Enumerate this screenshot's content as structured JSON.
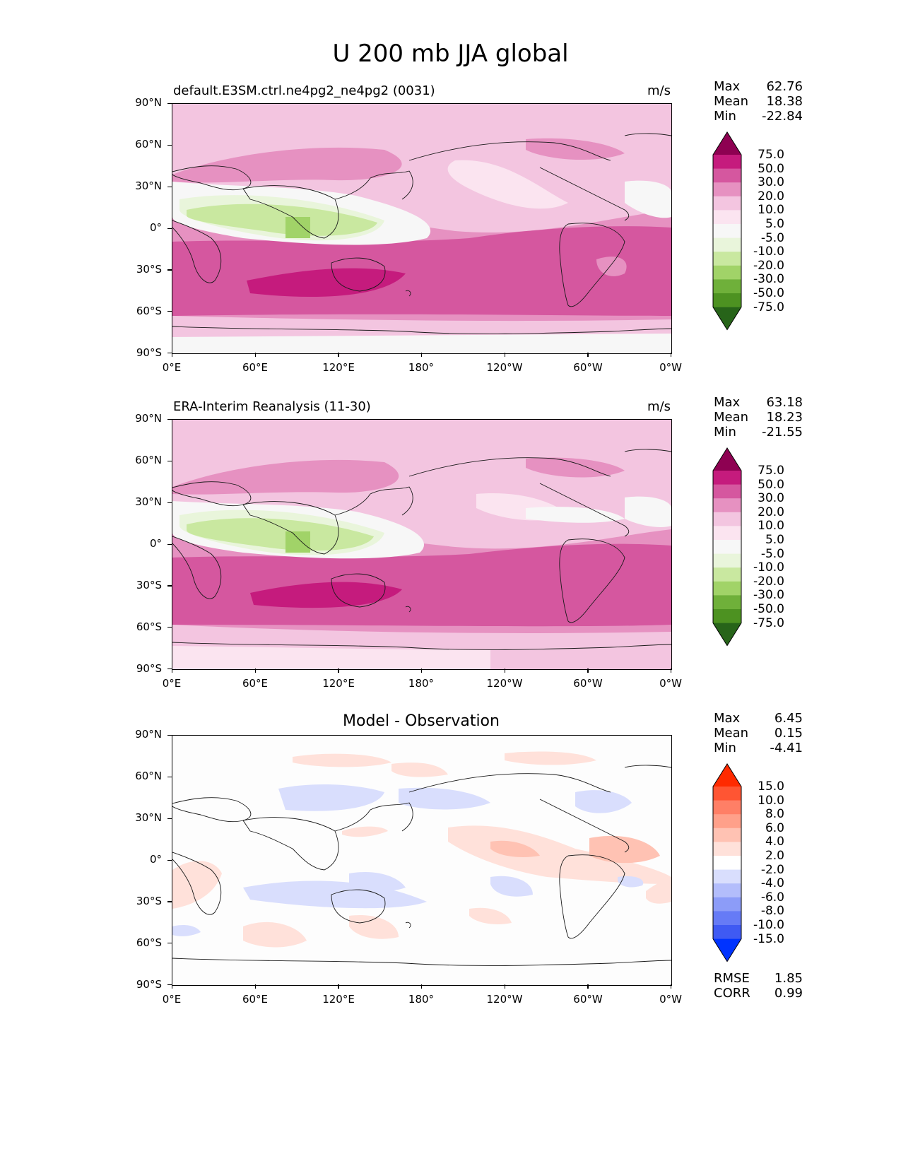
{
  "suptitle": "U 200 mb JJA global",
  "x_ticks": [
    "0°E",
    "60°E",
    "120°E",
    "180°",
    "120°W",
    "60°W",
    "0°W"
  ],
  "y_ticks": [
    "90°N",
    "60°N",
    "30°N",
    "0°",
    "30°S",
    "60°S",
    "90°S"
  ],
  "panels": [
    {
      "title": "default.E3SM.ctrl.ne4pg2_ne4pg2 (0031)",
      "units": "m/s",
      "stats": {
        "max_label": "Max",
        "max": "62.76",
        "mean_label": "Mean",
        "mean": "18.38",
        "min_label": "Min",
        "min": "-22.84"
      },
      "colorbar": {
        "labels": [
          "75.0",
          "50.0",
          "30.0",
          "20.0",
          "10.0",
          "5.0",
          "-5.0",
          "-10.0",
          "-20.0",
          "-30.0",
          "-50.0",
          "-75.0"
        ],
        "colors": [
          "#8e0152",
          "#c51b7d",
          "#d5579f",
          "#e691c1",
          "#f3c5e0",
          "#fbe4f0",
          "#f7f7f7",
          "#e9f5db",
          "#c9e8a0",
          "#a1d368",
          "#6fb03a",
          "#4d9221",
          "#276419"
        ]
      }
    },
    {
      "title": "ERA-Interim Reanalysis (11-30)",
      "units": "m/s",
      "stats": {
        "max_label": "Max",
        "max": "63.18",
        "mean_label": "Mean",
        "mean": "18.23",
        "min_label": "Min",
        "min": "-21.55"
      },
      "colorbar": {
        "labels": [
          "75.0",
          "50.0",
          "30.0",
          "20.0",
          "10.0",
          "5.0",
          "-5.0",
          "-10.0",
          "-20.0",
          "-30.0",
          "-50.0",
          "-75.0"
        ],
        "colors": [
          "#8e0152",
          "#c51b7d",
          "#d5579f",
          "#e691c1",
          "#f3c5e0",
          "#fbe4f0",
          "#f7f7f7",
          "#e9f5db",
          "#c9e8a0",
          "#a1d368",
          "#6fb03a",
          "#4d9221",
          "#276419"
        ]
      }
    },
    {
      "title": "Model - Observation",
      "stats": {
        "max_label": "Max",
        "max": "6.45",
        "mean_label": "Mean",
        "mean": "0.15",
        "min_label": "Min",
        "min": "-4.41"
      },
      "colorbar": {
        "labels": [
          "15.0",
          "10.0",
          "8.0",
          "6.0",
          "4.0",
          "2.0",
          "-2.0",
          "-4.0",
          "-6.0",
          "-8.0",
          "-10.0",
          "-15.0"
        ],
        "colors": [
          "#ff2a00",
          "#ff5533",
          "#ff7f66",
          "#ffa08a",
          "#ffc2b3",
          "#ffe1da",
          "#ffffff",
          "#d9defd",
          "#b3bdfb",
          "#8c9cf8",
          "#667bf6",
          "#3f5af3",
          "#0033ff"
        ]
      },
      "rmse_label": "RMSE",
      "rmse": "1.85",
      "corr_label": "CORR",
      "corr": "0.99"
    }
  ]
}
